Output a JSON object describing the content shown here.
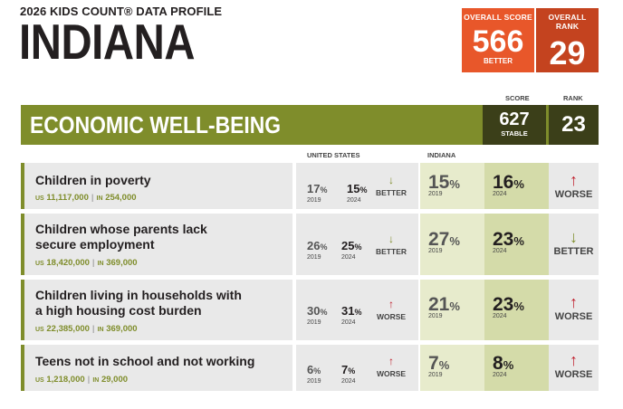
{
  "header": {
    "profile_label": "2026 KIDS COUNT® DATA PROFILE",
    "state_name": "INDIANA"
  },
  "overall": {
    "score_label": "OVERALL SCORE",
    "score_value": "566",
    "score_sub": "BETTER",
    "rank_label": "OVERALL RANK",
    "rank_value": "29"
  },
  "columns": {
    "score": "SCORE",
    "rank": "RANK",
    "us": "UNITED STATES",
    "state": "INDIANA"
  },
  "domain": {
    "title": "ECONOMIC WELL-BEING",
    "score": "627",
    "score_sub": "STABLE",
    "rank": "23"
  },
  "indicators": [
    {
      "name_lines": [
        "Children in poverty"
      ],
      "us_count": "11,117,000",
      "state_count": "254,000",
      "us_2019": "17",
      "us_2024": "15",
      "us_trend": "BETTER",
      "us_arrow": "↓",
      "state_2019": "15",
      "state_2024": "16",
      "state_trend": "WORSE",
      "state_arrow": "↑"
    },
    {
      "name_lines": [
        "Children whose parents lack",
        "secure employment"
      ],
      "us_count": "18,420,000",
      "state_count": "369,000",
      "us_2019": "26",
      "us_2024": "25",
      "us_trend": "BETTER",
      "us_arrow": "↓",
      "state_2019": "27",
      "state_2024": "23",
      "state_trend": "BETTER",
      "state_arrow": "↓"
    },
    {
      "name_lines": [
        "Children living in households with",
        "a high housing cost burden"
      ],
      "us_count": "22,385,000",
      "state_count": "369,000",
      "us_2019": "30",
      "us_2024": "31",
      "us_trend": "WORSE",
      "us_arrow": "↑",
      "state_2019": "21",
      "state_2024": "23",
      "state_trend": "WORSE",
      "state_arrow": "↑"
    },
    {
      "name_lines": [
        "Teens not in school and not working"
      ],
      "us_count": "1,218,000",
      "state_count": "29,000",
      "us_2019": "6",
      "us_2024": "7",
      "us_trend": "WORSE",
      "us_arrow": "↑",
      "state_2019": "7",
      "state_2024": "8",
      "state_trend": "WORSE",
      "state_arrow": "↑"
    }
  ],
  "labels": {
    "year_a": "2019",
    "year_b": "2024",
    "pct": "%",
    "us_prefix": "US",
    "state_prefix": "IN",
    "sep": "|"
  },
  "colors": {
    "accent_orange": "#e8572a",
    "domain_green": "#7f8d2b",
    "worse_red": "#c0202e"
  }
}
